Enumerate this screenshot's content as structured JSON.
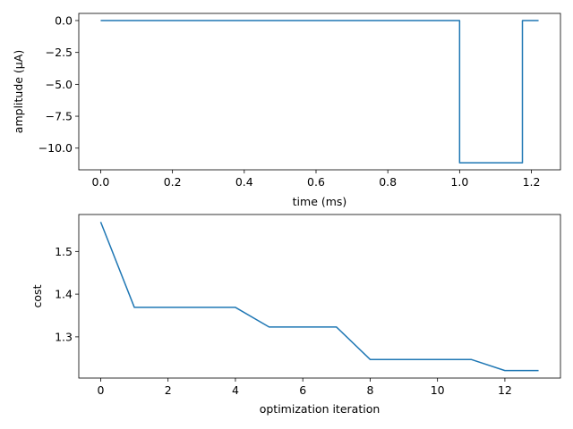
{
  "chart_data": [
    {
      "type": "line",
      "title": "",
      "xlabel": "time (ms)",
      "ylabel": "amplitude (µA)",
      "xlim": [
        -0.061,
        1.281
      ],
      "ylim": [
        -11.7,
        0.56
      ],
      "xticks": [
        0.0,
        0.2,
        0.4,
        0.6,
        0.8,
        1.0,
        1.2
      ],
      "xtick_labels": [
        "0.0",
        "0.2",
        "0.4",
        "0.6",
        "0.8",
        "1.0",
        "1.2"
      ],
      "yticks": [
        0.0,
        -2.5,
        -5.0,
        -7.5,
        -10.0
      ],
      "ytick_labels": [
        "0.0",
        "−2.5",
        "−5.0",
        "−7.5",
        "−10.0"
      ],
      "grid": false,
      "color": "#1f77b4",
      "series": [
        {
          "x": [
            0.0,
            1.0,
            1.0,
            1.175,
            1.175,
            1.22
          ],
          "y": [
            0.0,
            0.0,
            -11.15,
            -11.15,
            0.0,
            0.0
          ]
        }
      ]
    },
    {
      "type": "line",
      "title": "",
      "xlabel": "optimization iteration",
      "ylabel": "cost",
      "xlim": [
        -0.65,
        13.65
      ],
      "ylim": [
        1.2035,
        1.5865
      ],
      "xticks": [
        0,
        2,
        4,
        6,
        8,
        10,
        12
      ],
      "xtick_labels": [
        "0",
        "2",
        "4",
        "6",
        "8",
        "10",
        "12"
      ],
      "yticks": [
        1.3,
        1.4,
        1.5
      ],
      "ytick_labels": [
        "1.3",
        "1.4",
        "1.5"
      ],
      "grid": false,
      "color": "#1f77b4",
      "series": [
        {
          "x": [
            0,
            1,
            2,
            3,
            4,
            5,
            6,
            7,
            8,
            9,
            10,
            11,
            12,
            13
          ],
          "y": [
            1.569,
            1.369,
            1.369,
            1.369,
            1.369,
            1.323,
            1.323,
            1.323,
            1.247,
            1.247,
            1.247,
            1.247,
            1.221,
            1.221
          ]
        }
      ]
    }
  ]
}
